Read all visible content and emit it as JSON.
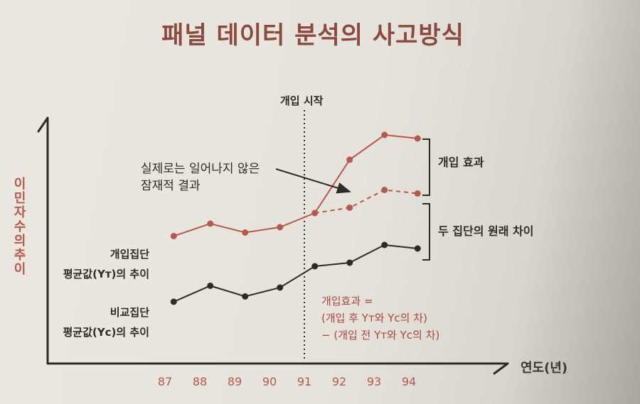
{
  "title": "패널 데이터 분석의 사고방식",
  "chart_data": {
    "type": "line",
    "ylabel": "이민자 수의 추이",
    "xlabel": "연도(년)",
    "categories": [
      "87",
      "88",
      "89",
      "90",
      "91",
      "92",
      "93",
      "94"
    ],
    "intervention_label": "개입 시작",
    "series": [
      {
        "name": "개입집단 평균값(Yт)의 추이",
        "name_line1": "개입집단",
        "name_line2": "평균값(Yт)의 추이",
        "x": [
          87.25,
          88.3,
          89.3,
          90.3,
          91.3,
          92.3,
          93.3,
          94.25
        ],
        "values": [
          6.9,
          7.6,
          7.1,
          7.4,
          8.2,
          11.2,
          12.6,
          12.4
        ],
        "color": "#b8584a"
      },
      {
        "name": "비교집단 평균값(Yc)의 추이",
        "name_line1": "비교집단",
        "name_line2": "평균값(Yc)의 추이",
        "x": [
          87.25,
          88.3,
          89.3,
          90.3,
          91.3,
          92.3,
          93.3,
          94.25
        ],
        "values": [
          3.2,
          4.1,
          3.5,
          4.0,
          5.2,
          5.4,
          6.4,
          6.2
        ],
        "color": "#2f2a28"
      },
      {
        "name": "실제로는 일어나지 않은 잠재적 결과",
        "x": [
          91.3,
          92.3,
          93.3,
          94.25
        ],
        "values": [
          8.2,
          8.5,
          9.5,
          9.3
        ],
        "color": "#b8584a",
        "dashed": true
      }
    ],
    "annotations": {
      "counterfactual_line1": "실제로는 일어나지 않은",
      "counterfactual_line2": "잠재적 결과",
      "effect": "개입 효과",
      "baseline_diff": "두 집단의 원래 차이",
      "formula_line1": "개입효과 =",
      "formula_line2": "(개입 후 Yт와 Yc의 차)",
      "formula_line3": "− (개입 전 Yт와 Yc의 차)"
    }
  }
}
